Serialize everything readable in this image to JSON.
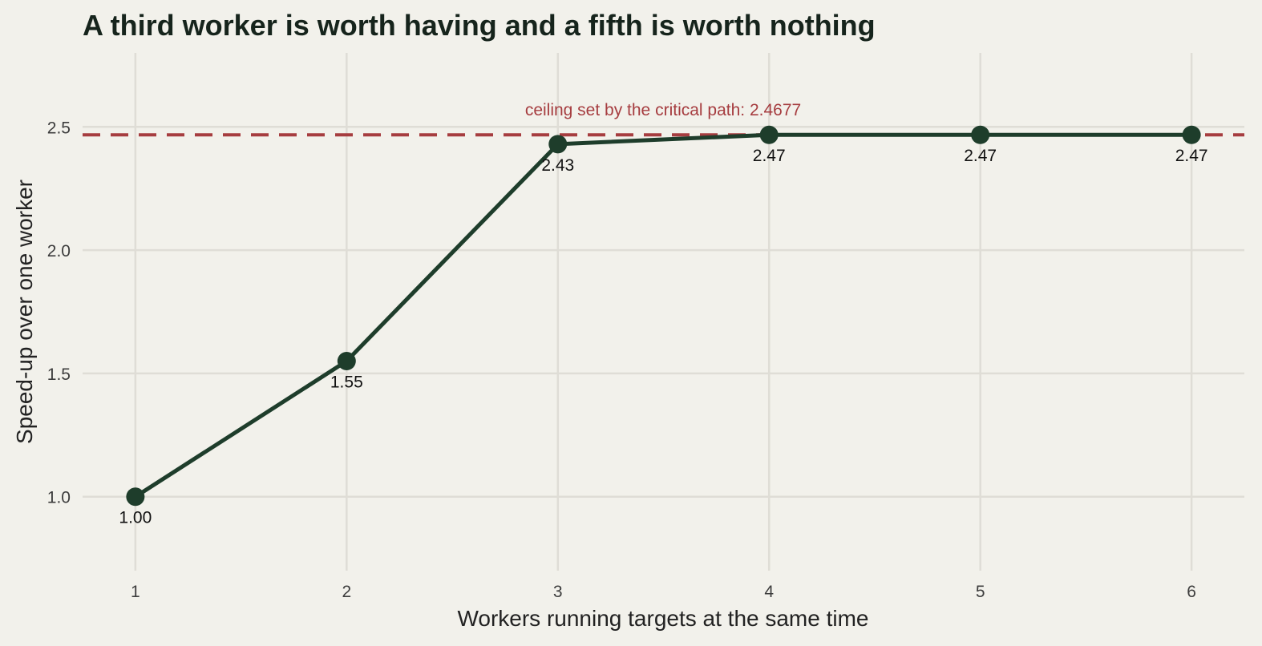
{
  "chart_data": {
    "type": "line",
    "title": "A third worker is worth having and a fifth is worth nothing",
    "xlabel": "Workers running targets at the same time",
    "ylabel": "Speed-up over one worker",
    "x": [
      1,
      2,
      3,
      4,
      5,
      6
    ],
    "series": [
      {
        "values": [
          1.0,
          1.55,
          2.43,
          2.4677,
          2.4677,
          2.4677
        ],
        "labels": [
          "1.00",
          "1.55",
          "2.43",
          "2.47",
          "2.47",
          "2.47"
        ]
      }
    ],
    "xlim": [
      0.75,
      6.25
    ],
    "ylim": [
      0.7,
      2.8
    ],
    "x_ticks": [
      1,
      2,
      3,
      4,
      5,
      6
    ],
    "x_tick_labels": [
      "1",
      "2",
      "3",
      "4",
      "5",
      "6"
    ],
    "y_ticks": [
      1.0,
      1.5,
      2.0,
      2.5
    ],
    "y_tick_labels": [
      "1.0",
      "1.5",
      "2.0",
      "2.5"
    ],
    "reference_line": {
      "value": 2.4677,
      "label": "ceiling set by the critical path: 2.4677",
      "style": "dashed",
      "color": "#a63d40"
    },
    "grid": true,
    "legend": "none",
    "colors": {
      "line": "#1e3d2b",
      "background": "#f2f1eb",
      "grid": "#dfddd6"
    }
  }
}
